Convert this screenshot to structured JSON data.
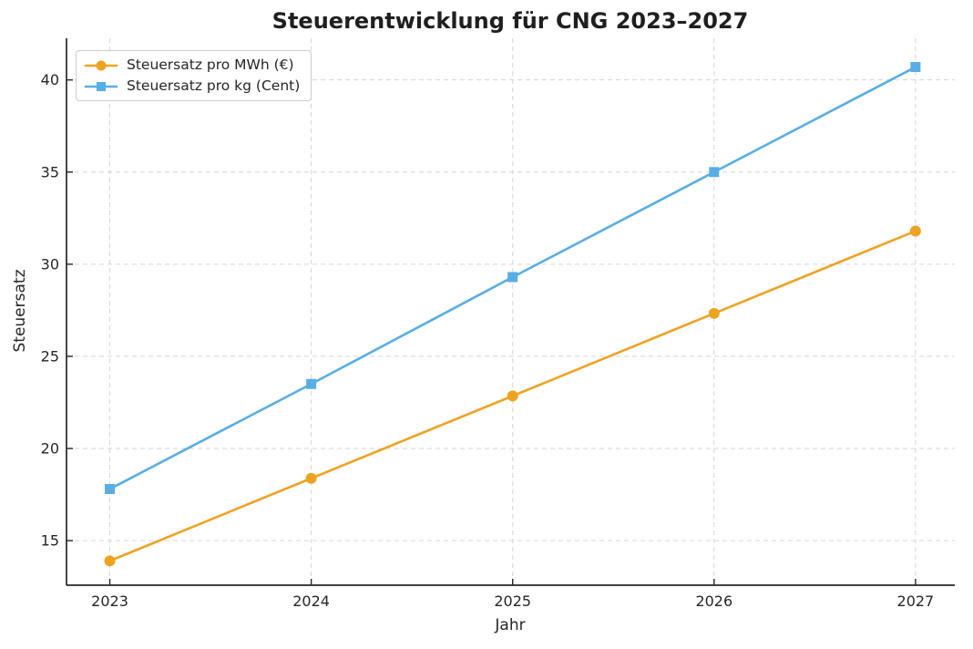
{
  "chart_data": {
    "type": "line",
    "title": "Steuerentwicklung für CNG 2023–2027",
    "xlabel": "Jahr",
    "ylabel": "Steuersatz",
    "x": [
      2023,
      2024,
      2025,
      2026,
      2027
    ],
    "xticks": [
      "2023",
      "2024",
      "2025",
      "2026",
      "2027"
    ],
    "yticks": [
      15,
      20,
      25,
      30,
      35,
      40
    ],
    "xlim": [
      2022.785,
      2027.195
    ],
    "ylim": [
      12.58,
      42.26
    ],
    "grid": true,
    "grid_color": "#d6d6d6",
    "axis_color": "#262626",
    "legend_position": "upper-left",
    "series": [
      {
        "name": "Steuersatz pro MWh (€)",
        "values": [
          13.9,
          18.38,
          22.85,
          27.33,
          31.8
        ],
        "color": "#EEA320",
        "marker": "circle"
      },
      {
        "name": "Steuersatz pro kg (Cent)",
        "values": [
          17.8,
          23.5,
          29.3,
          35.0,
          40.7
        ],
        "color": "#58ADE4",
        "marker": "square"
      }
    ]
  }
}
